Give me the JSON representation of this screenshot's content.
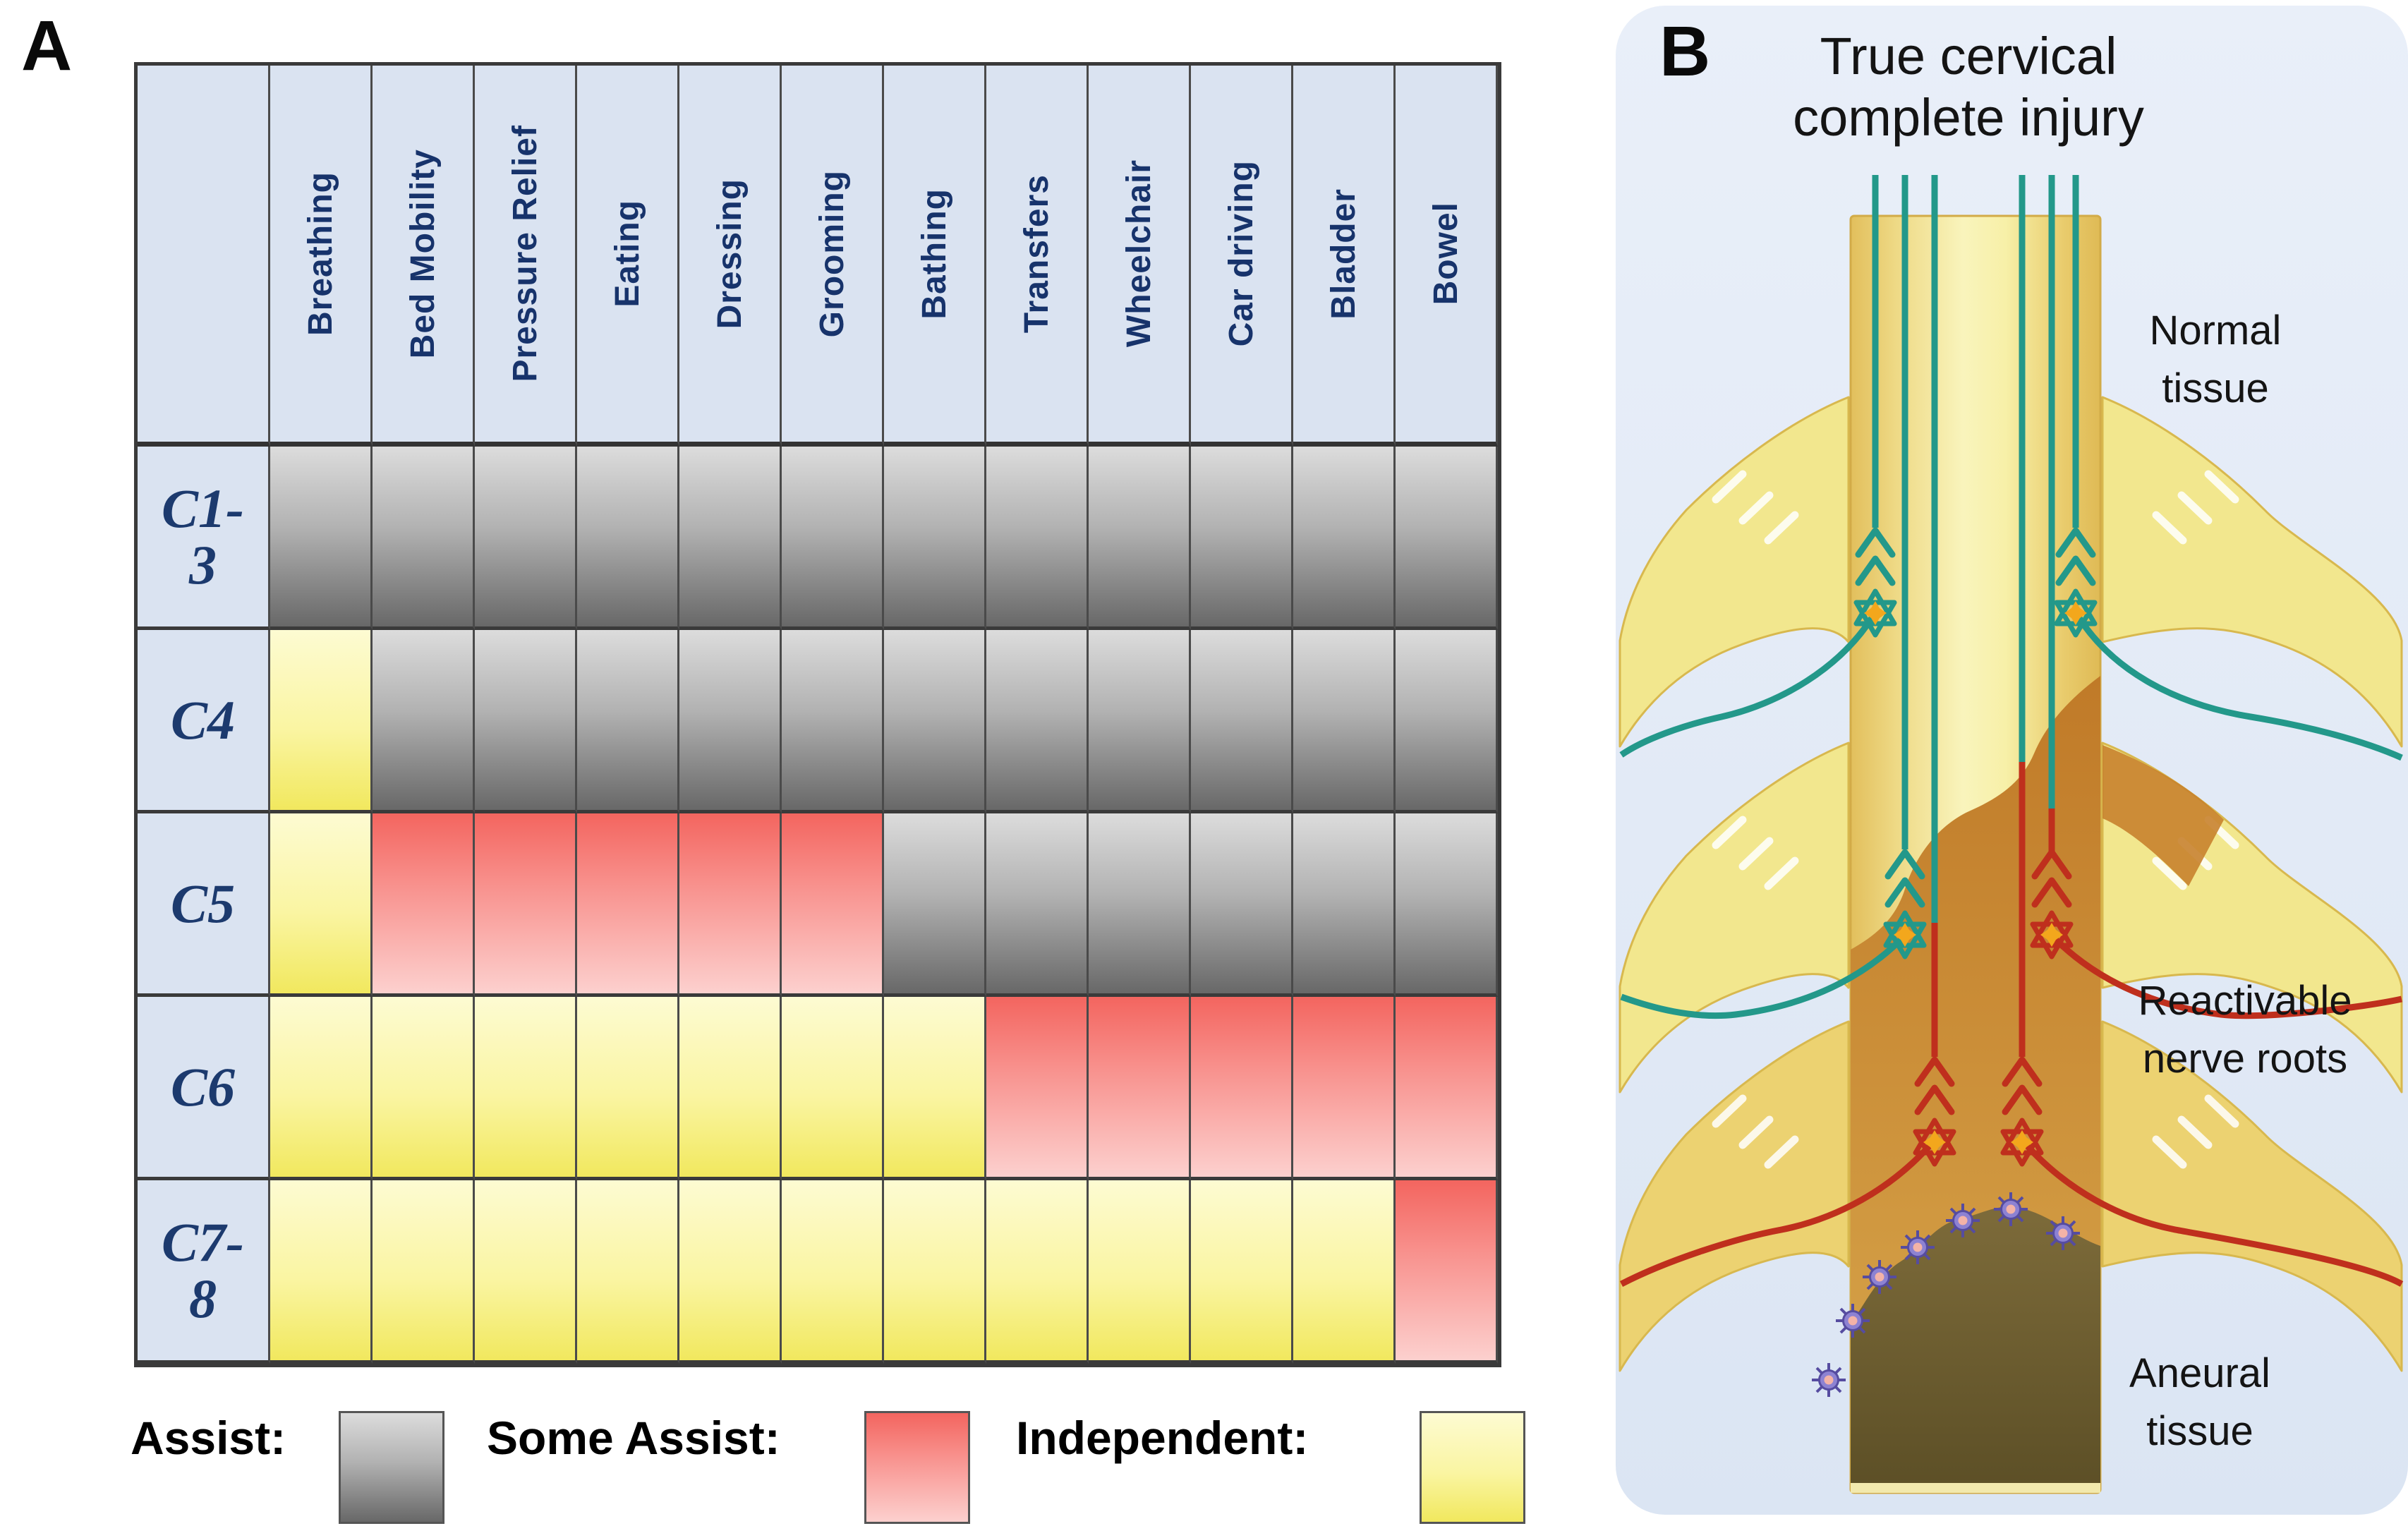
{
  "figure": {
    "panel_a": {
      "panel_letter": "A",
      "columns": [
        "Breathing",
        "Bed Mobility",
        "Pressure Relief",
        "Eating",
        "Dressing",
        "Grooming",
        "Bathing",
        "Transfers",
        "Wheelchair",
        "Car driving",
        "Bladder",
        "Bowel"
      ],
      "rows": [
        {
          "label": "C1-3",
          "label_lines": [
            "C1-",
            "3"
          ],
          "cells": [
            "A",
            "A",
            "A",
            "A",
            "A",
            "A",
            "A",
            "A",
            "A",
            "A",
            "A",
            "A"
          ]
        },
        {
          "label": "C4",
          "label_lines": [
            "C4"
          ],
          "cells": [
            "I",
            "A",
            "A",
            "A",
            "A",
            "A",
            "A",
            "A",
            "A",
            "A",
            "A",
            "A"
          ]
        },
        {
          "label": "C5",
          "label_lines": [
            "C5"
          ],
          "cells": [
            "I",
            "S",
            "S",
            "S",
            "S",
            "S",
            "A",
            "A",
            "A",
            "A",
            "A",
            "A"
          ]
        },
        {
          "label": "C6",
          "label_lines": [
            "C6"
          ],
          "cells": [
            "I",
            "I",
            "I",
            "I",
            "I",
            "I",
            "I",
            "S",
            "S",
            "S",
            "S",
            "S"
          ]
        },
        {
          "label": "C7-8",
          "label_lines": [
            "C7-",
            "8"
          ],
          "cells": [
            "I",
            "I",
            "I",
            "I",
            "I",
            "I",
            "I",
            "I",
            "I",
            "I",
            "I",
            "S"
          ]
        }
      ],
      "cell_key": {
        "A": "Assist",
        "S": "Some Assist",
        "I": "Independent"
      },
      "legend": [
        {
          "label": "Assist:",
          "status": "assist"
        },
        {
          "label": "Some Assist:",
          "status": "some-assist"
        },
        {
          "label": "Independent:",
          "status": "independent"
        }
      ],
      "colors": {
        "assist_gradient": [
          "#dcdcdc",
          "#686868"
        ],
        "some_assist_gradient": [
          "#f3655f",
          "#fcd0ce"
        ],
        "independent_gradient": [
          "#fdfbd2",
          "#f1e85e"
        ],
        "header_bg": "#dae3f1",
        "header_text": "#17336b",
        "grid_line": "#3f3f3f"
      }
    },
    "panel_b": {
      "panel_letter": "B",
      "title_lines": [
        "True cervical",
        "complete injury"
      ],
      "annotations": {
        "normal": {
          "line1": "Normal",
          "line2": "tissue"
        },
        "reactivable": {
          "line1": "Reactivable",
          "line2": "nerve roots"
        },
        "aneural": {
          "line1": "Aneural",
          "line2": "tissue"
        }
      },
      "colors": {
        "background": "#e7edf7",
        "cord_center": "#f9f4bc",
        "cord_edge": "#e2bf5c",
        "nerve_root": "#f2e78e",
        "injured_tissue": "#c07a28",
        "aneural_tissue": "#5c4f26",
        "healthy_axon": "#23988a",
        "interrupted_axon": "#bf2f1d",
        "synapse_star": "#f3a71c",
        "glial_cell": "#8d82d2"
      }
    }
  }
}
